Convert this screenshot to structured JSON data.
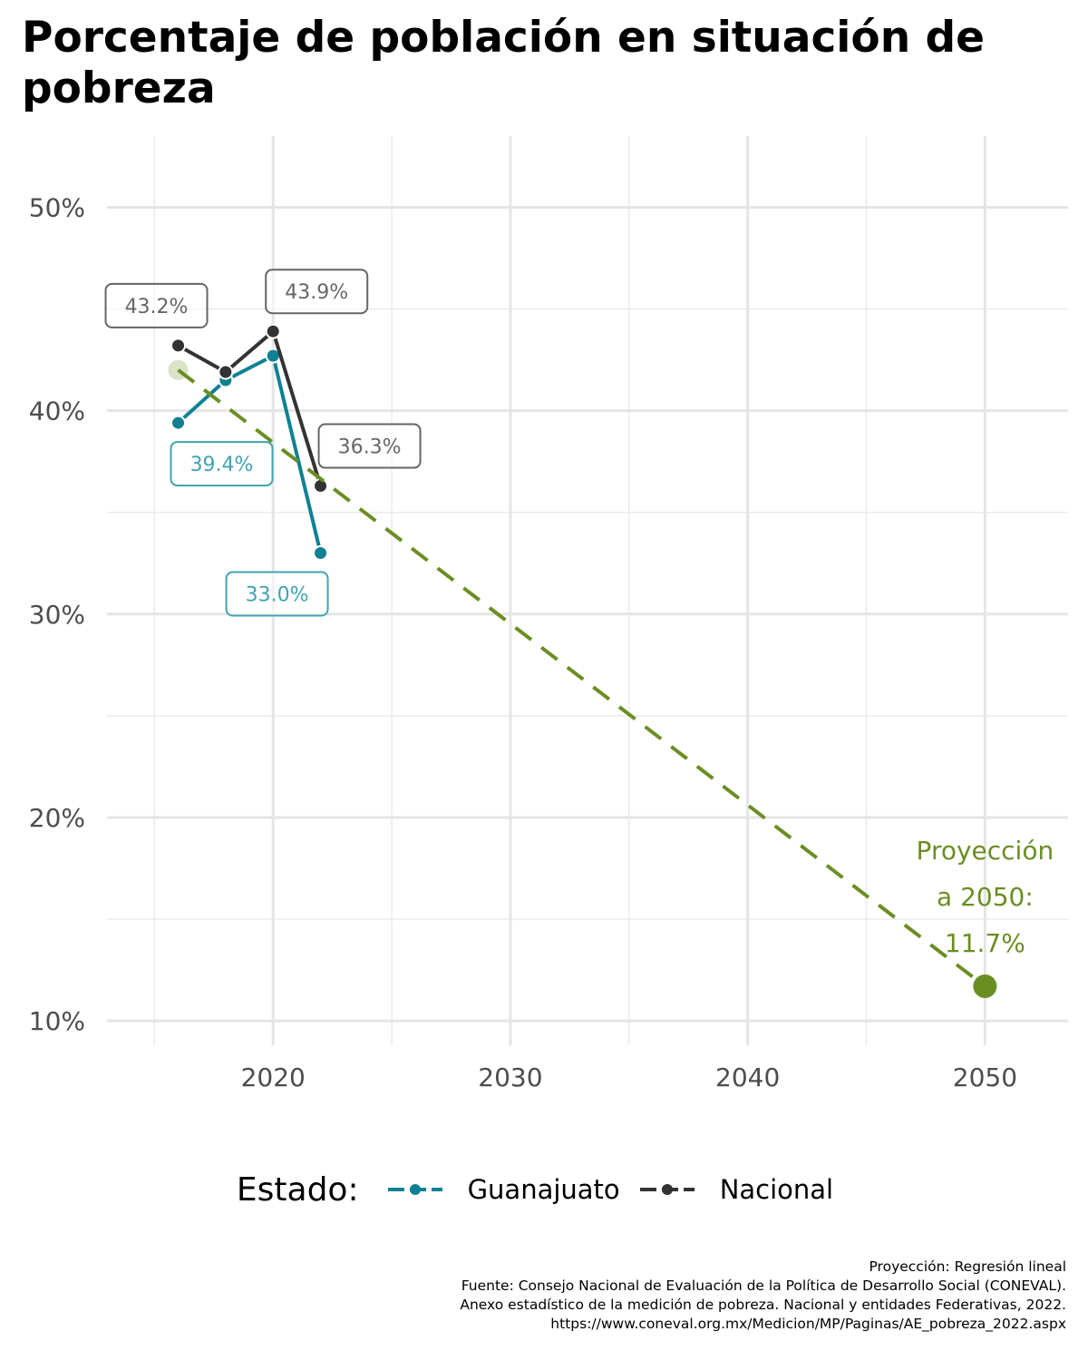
{
  "title": "Porcentaje de población en situación de pobreza",
  "chart_data": {
    "type": "line",
    "title": "Porcentaje de población en situación de pobreza",
    "xlabel": "",
    "ylabel": "",
    "xlim": [
      2013,
      2053.5
    ],
    "ylim": [
      8.8,
      53.5
    ],
    "x_ticks": [
      2020,
      2030,
      2040,
      2050
    ],
    "y_ticks": [
      10,
      20,
      30,
      40,
      50
    ],
    "y_tick_labels": [
      "10%",
      "20%",
      "30%",
      "40%",
      "50%"
    ],
    "x_tick_labels": [
      "2020",
      "2030",
      "2040",
      "2050"
    ],
    "grid": true,
    "legend_position": "bottom",
    "legend_title": "Estado:",
    "series": [
      {
        "name": "Guanajuato",
        "color": "#0e8194",
        "label_color": "#3fa3b3",
        "x": [
          2016,
          2018,
          2020,
          2022
        ],
        "values": [
          39.4,
          41.5,
          42.7,
          33.0
        ],
        "labels": [
          {
            "x": 2016,
            "value": 39.4,
            "text": "39.4%"
          },
          {
            "x": 2022,
            "value": 33.0,
            "text": "33.0%"
          }
        ]
      },
      {
        "name": "Nacional",
        "color": "#333333",
        "label_color": "#666666",
        "x": [
          2016,
          2018,
          2020,
          2022
        ],
        "values": [
          43.2,
          41.9,
          43.9,
          36.3
        ],
        "labels": [
          {
            "x": 2016,
            "value": 43.2,
            "text": "43.2%"
          },
          {
            "x": 2020,
            "value": 43.9,
            "text": "43.9%"
          },
          {
            "x": 2022,
            "value": 36.3,
            "text": "36.3%"
          }
        ]
      }
    ],
    "projection": {
      "color": "#6b8e23",
      "x": [
        2016,
        2050
      ],
      "values": [
        42.0,
        11.7
      ],
      "endpoint": {
        "x": 2050,
        "value": 11.7
      },
      "label_lines": [
        "Proyección",
        "a 2050:",
        "11.7%"
      ]
    }
  },
  "caption_lines": [
    "Proyección: Regresión lineal",
    "Fuente: Consejo Nacional de Evaluación de la Política de Desarrollo Social (CONEVAL).",
    "Anexo estadístico de la medición de pobreza. Nacional y entidades Federativas, 2022.",
    "https://www.coneval.org.mx/Medicion/MP/Paginas/AE_pobreza_2022.aspx"
  ]
}
